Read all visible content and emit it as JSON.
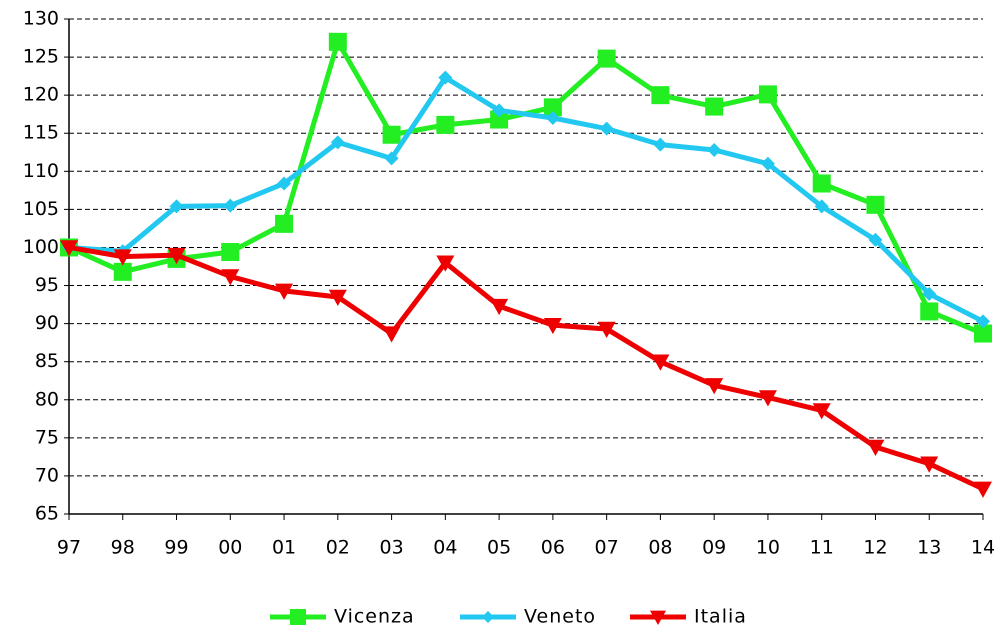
{
  "chart_data": {
    "type": "line",
    "categories": [
      "97",
      "98",
      "99",
      "00",
      "01",
      "02",
      "03",
      "04",
      "05",
      "06",
      "07",
      "08",
      "09",
      "10",
      "11",
      "12",
      "13",
      "14"
    ],
    "series": [
      {
        "name": "Vicenza",
        "color": "#22ee22",
        "marker": "square",
        "values": [
          100,
          96.8,
          98.5,
          99.4,
          103.1,
          127,
          114.8,
          116.1,
          116.8,
          118.4,
          124.8,
          120,
          118.5,
          120.1,
          108.4,
          105.6,
          91.6,
          88.7
        ]
      },
      {
        "name": "Veneto",
        "color": "#22c8f0",
        "marker": "diamond",
        "values": [
          100,
          99.5,
          105.4,
          105.5,
          108.4,
          113.8,
          111.7,
          122.3,
          118,
          117,
          115.6,
          113.5,
          112.8,
          111,
          105.4,
          101,
          93.9,
          90.3
        ]
      },
      {
        "name": "Italia",
        "color": "#ee0000",
        "marker": "triangle-down",
        "values": [
          100,
          98.8,
          99,
          96.2,
          94.3,
          93.5,
          88.7,
          98,
          92.3,
          89.8,
          89.3,
          85,
          81.9,
          80.3,
          78.6,
          73.8,
          71.6,
          68.3
        ]
      }
    ],
    "ylim": [
      65,
      130
    ],
    "yticks": [
      65,
      70,
      75,
      80,
      85,
      90,
      95,
      100,
      105,
      110,
      115,
      120,
      125,
      130
    ],
    "grid": true,
    "legend": "bottom"
  }
}
